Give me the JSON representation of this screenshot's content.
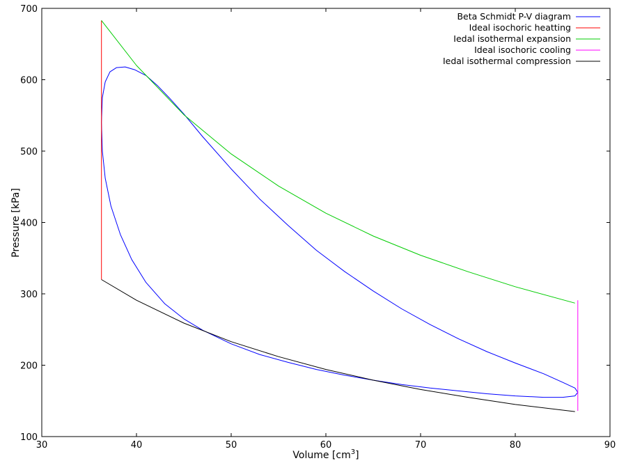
{
  "chart_data": {
    "type": "line",
    "title": "",
    "xlabel": "Volume [cm",
    "xlabel_sup": "3",
    "xlabel_end": "]",
    "ylabel": "Pressure [kPa]",
    "xlim": [
      30,
      90
    ],
    "ylim": [
      100,
      700
    ],
    "xticks": [
      30,
      40,
      50,
      60,
      70,
      80,
      90
    ],
    "yticks": [
      100,
      200,
      300,
      400,
      500,
      600,
      700
    ],
    "grid": false,
    "legend_position": "top-right",
    "series": [
      {
        "name": "Beta Schmidt P-V diagram",
        "color": "#0000ff",
        "x": [
          36.3,
          36.4,
          36.7,
          37.2,
          37.9,
          38.8,
          39.8,
          41.0,
          42.2,
          43.5,
          45.0,
          47.0,
          50.0,
          53.0,
          56.0,
          59.0,
          62.0,
          65.0,
          68.0,
          71.0,
          74.0,
          77.0,
          80.0,
          83.0,
          85.0,
          86.3,
          86.6,
          86.3,
          85.0,
          83.0,
          80.0,
          77.0,
          74.0,
          71.0,
          68.0,
          65.0,
          62.0,
          59.0,
          56.0,
          53.0,
          50.0,
          47.0,
          45.0,
          43.0,
          41.0,
          39.5,
          38.3,
          37.3,
          36.7,
          36.4,
          36.3
        ],
        "y": [
          540,
          575,
          597,
          611,
          617,
          618,
          614,
          606,
          592,
          574,
          552,
          520,
          475,
          433,
          396,
          361,
          331,
          304,
          279,
          257,
          237,
          219,
          203,
          188,
          176,
          168,
          162,
          157,
          155,
          155,
          157,
          160,
          164,
          168,
          173,
          179,
          186,
          194,
          204,
          215,
          230,
          249,
          265,
          286,
          316,
          348,
          383,
          423,
          462,
          500,
          540
        ]
      },
      {
        "name": "Ideal isochoric heatting",
        "color": "#ff0000",
        "x": [
          36.3,
          36.3
        ],
        "y": [
          320,
          683
        ]
      },
      {
        "name": "Iedal isothermal expansion",
        "color": "#00cc00",
        "x": [
          36.3,
          40,
          45,
          50,
          55,
          60,
          65,
          70,
          75,
          80,
          86.3
        ],
        "y": [
          683,
          620,
          551,
          496,
          451,
          413,
          381,
          354,
          331,
          310,
          287
        ]
      },
      {
        "name": "Ideal isochoric cooling",
        "color": "#ff00ff",
        "x": [
          86.6,
          86.6
        ],
        "y": [
          136,
          291
        ]
      },
      {
        "name": "Iedal isothermal compression",
        "color": "#000000",
        "x": [
          36.3,
          40,
          45,
          50,
          55,
          60,
          65,
          70,
          75,
          80,
          86.3
        ],
        "y": [
          320,
          291,
          259,
          233,
          212,
          194,
          179,
          166,
          155,
          145,
          135
        ]
      }
    ]
  }
}
